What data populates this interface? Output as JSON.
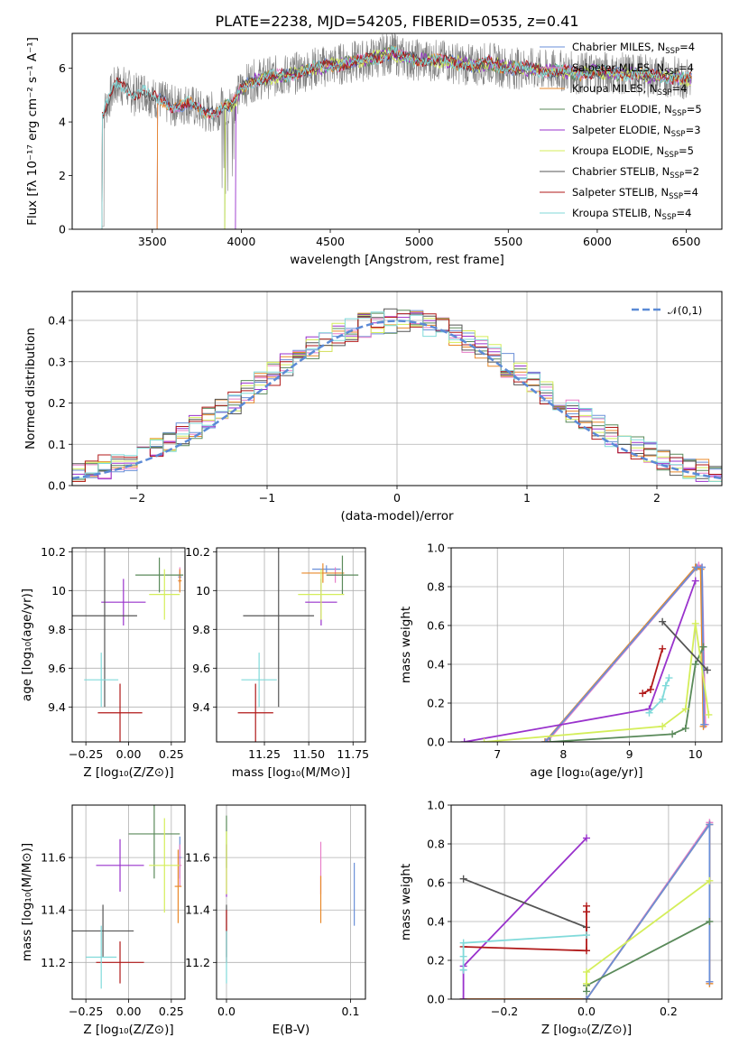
{
  "figure_title": "PLATE=2238, MJD=54205, FIBERID=0535, z=0.41",
  "colors": {
    "Chabrier MILES": "#6a8fd8",
    "Salpeter MILES": "#e87fc8",
    "Kroupa MILES": "#e8892a",
    "Chabrier ELODIE": "#5a8a5a",
    "Salpeter ELODIE": "#9932cc",
    "Kroupa ELODIE": "#d4ee5a",
    "Chabrier STELIB": "#555555",
    "Salpeter STELIB": "#b01818",
    "Kroupa STELIB": "#80dada",
    "data": "#7f7f7f",
    "gaussian": "#5b8ad6"
  },
  "chart_data": [
    {
      "id": "spectrum",
      "type": "line",
      "title": "PLATE=2238, MJD=54205, FIBERID=0535, z=0.41",
      "xlabel": "wavelength [Angstrom, rest frame]",
      "ylabel": "Flux [fλ 10⁻¹⁷ erg cm⁻² s⁻¹ A⁻¹]",
      "xlim": [
        3050,
        6700
      ],
      "ylim": [
        0,
        7.3
      ],
      "xticks": [
        3500,
        4000,
        4500,
        5000,
        5500,
        6000,
        6500
      ],
      "yticks": [
        0,
        2,
        4,
        6
      ],
      "grid": false,
      "legend": "top-right",
      "legend_entries": [
        {
          "name": "Chabrier MILES",
          "nssp": "4"
        },
        {
          "name": "Salpeter MILES",
          "nssp": "4"
        },
        {
          "name": "Kroupa MILES",
          "nssp": "4"
        },
        {
          "name": "Chabrier ELODIE",
          "nssp": "5"
        },
        {
          "name": "Salpeter ELODIE",
          "nssp": "3"
        },
        {
          "name": "Kroupa ELODIE",
          "nssp": "5"
        },
        {
          "name": "Chabrier STELIB",
          "nssp": "2"
        },
        {
          "name": "Salpeter STELIB",
          "nssp": "4"
        },
        {
          "name": "Kroupa STELIB",
          "nssp": "4"
        }
      ],
      "continuum_x": [
        3200,
        3230,
        3280,
        3300,
        3350,
        3400,
        3450,
        3500,
        3550,
        3600,
        3650,
        3700,
        3750,
        3800,
        3850,
        3900,
        3950,
        4000,
        4050,
        4100,
        4200,
        4300,
        4400,
        4500,
        4600,
        4700,
        4800,
        4850,
        4900,
        5000,
        5100,
        5200,
        5300,
        5400,
        5500,
        5600,
        5700,
        5800,
        5900,
        6000,
        6100,
        6200,
        6300,
        6400,
        6500
      ],
      "continuum_y": [
        4.0,
        4.4,
        5.2,
        5.4,
        5.3,
        5.0,
        5.2,
        4.9,
        4.8,
        4.6,
        4.6,
        4.7,
        4.5,
        4.3,
        4.4,
        4.6,
        4.6,
        5.2,
        5.5,
        5.6,
        5.7,
        5.8,
        6.0,
        6.1,
        6.2,
        6.3,
        6.5,
        6.6,
        6.4,
        6.3,
        6.3,
        6.2,
        6.1,
        6.2,
        6.0,
        6.0,
        5.9,
        5.9,
        5.8,
        5.9,
        5.8,
        5.8,
        5.7,
        5.7,
        5.6
      ],
      "model_start_x": {
        "Chabrier MILES": 3530,
        "Salpeter MILES": 3530,
        "Kroupa MILES": 3530,
        "Chabrier ELODIE": 3910,
        "Salpeter ELODIE": 3970,
        "Kroupa ELODIE": 3910,
        "Chabrier STELIB": 3220,
        "Salpeter STELIB": 3220,
        "Kroupa STELIB": 3220
      },
      "data_x_range": [
        3220,
        6530
      ]
    },
    {
      "id": "residuals",
      "type": "step",
      "xlabel": "(data-model)/error",
      "ylabel": "Normed distribution",
      "xlim": [
        -2.5,
        2.5
      ],
      "ylim": [
        0,
        0.47
      ],
      "xticks": [
        -2,
        -1,
        0,
        1,
        2
      ],
      "yticks": [
        0.0,
        0.1,
        0.2,
        0.3,
        0.4
      ],
      "grid": true,
      "legend": "top-right",
      "gaussian_label": "𝒩(0,1)",
      "bin_width": 0.1,
      "series": [
        {
          "name": "Chabrier MILES",
          "offset": 0.0
        },
        {
          "name": "Salpeter MILES",
          "offset": 0.3
        },
        {
          "name": "Kroupa MILES",
          "offset": 0.6
        },
        {
          "name": "Chabrier ELODIE",
          "offset": 0.9
        },
        {
          "name": "Salpeter ELODIE",
          "offset": 1.2
        },
        {
          "name": "Kroupa ELODIE",
          "offset": 1.5
        },
        {
          "name": "Chabrier STELIB",
          "offset": 1.8
        },
        {
          "name": "Salpeter STELIB",
          "offset": 2.1
        },
        {
          "name": "Kroupa STELIB",
          "offset": 2.4
        }
      ]
    },
    {
      "id": "age_vs_Z",
      "type": "errorbar",
      "xlabel": "Z [log₁₀(Z/Z⊙)]",
      "ylabel": "age  [log₁₀(age/yr)]",
      "xlim": [
        -0.33,
        0.33
      ],
      "ylim": [
        9.22,
        10.22
      ],
      "xticks": [
        -0.25,
        0.0,
        0.25
      ],
      "xtick_labels": [
        "−0.25",
        "0.00",
        "0.25"
      ],
      "yticks": [
        9.4,
        9.6,
        9.8,
        10.0,
        10.2
      ],
      "grid": true,
      "points": [
        {
          "name": "Chabrier MILES",
          "x": 0.3,
          "y": 10.07,
          "xerr": 0.01,
          "yerr": 0.03
        },
        {
          "name": "Salpeter MILES",
          "x": 0.3,
          "y": 10.08,
          "xerr": 0.01,
          "yerr": 0.04
        },
        {
          "name": "Kroupa MILES",
          "x": 0.3,
          "y": 10.05,
          "xerr": 0.01,
          "yerr": 0.06
        },
        {
          "name": "Chabrier ELODIE",
          "x": 0.18,
          "y": 10.08,
          "xerr": 0.14,
          "yerr": 0.09
        },
        {
          "name": "Salpeter ELODIE",
          "x": -0.03,
          "y": 9.94,
          "xerr": 0.13,
          "yerr": 0.12
        },
        {
          "name": "Kroupa ELODIE",
          "x": 0.21,
          "y": 9.98,
          "xerr": 0.09,
          "yerr": 0.13
        },
        {
          "name": "Chabrier STELIB",
          "x": -0.14,
          "y": 9.87,
          "xerr": 0.19,
          "yerr": 0.47
        },
        {
          "name": "Salpeter STELIB",
          "x": -0.05,
          "y": 9.37,
          "xerr": 0.13,
          "yerr": 0.15
        },
        {
          "name": "Kroupa STELIB",
          "x": -0.16,
          "y": 9.54,
          "xerr": 0.1,
          "yerr": 0.14
        }
      ]
    },
    {
      "id": "age_vs_mass",
      "type": "errorbar",
      "xlabel": "mass [log₁₀(M/M⊙)]",
      "xlim": [
        10.98,
        11.82
      ],
      "ylim": [
        9.22,
        10.22
      ],
      "xticks": [
        11.25,
        11.5,
        11.75
      ],
      "xtick_labels": [
        "11.25",
        "11.50",
        "11.75"
      ],
      "yticks": [
        9.4,
        9.6,
        9.8,
        10.0,
        10.2
      ],
      "grid": true,
      "points": [
        {
          "name": "Chabrier MILES",
          "x": 11.6,
          "y": 10.11,
          "xerr": 0.08,
          "yerr": 0.02
        },
        {
          "name": "Salpeter MILES",
          "x": 11.65,
          "y": 10.08,
          "xerr": 0.05,
          "yerr": 0.04
        },
        {
          "name": "Kroupa MILES",
          "x": 11.58,
          "y": 10.09,
          "xerr": 0.12,
          "yerr": 0.05
        },
        {
          "name": "Chabrier ELODIE",
          "x": 11.69,
          "y": 10.08,
          "xerr": 0.09,
          "yerr": 0.1
        },
        {
          "name": "Salpeter ELODIE",
          "x": 11.57,
          "y": 9.94,
          "xerr": 0.09,
          "yerr": 0.12
        },
        {
          "name": "Kroupa ELODIE",
          "x": 11.57,
          "y": 9.98,
          "xerr": 0.13,
          "yerr": 0.13
        },
        {
          "name": "Chabrier STELIB",
          "x": 11.33,
          "y": 9.87,
          "xerr": 0.2,
          "yerr": 0.47
        },
        {
          "name": "Salpeter STELIB",
          "x": 11.2,
          "y": 9.37,
          "xerr": 0.1,
          "yerr": 0.15
        },
        {
          "name": "Kroupa STELIB",
          "x": 11.22,
          "y": 9.54,
          "xerr": 0.1,
          "yerr": 0.14
        }
      ]
    },
    {
      "id": "weight_vs_age",
      "type": "line",
      "xlabel": "age  [log₁₀(age/yr)]",
      "ylabel": "mass weight",
      "xlim": [
        6.3,
        10.4
      ],
      "ylim": [
        0,
        1
      ],
      "xticks": [
        7,
        8,
        9,
        10
      ],
      "yticks": [
        0.0,
        0.2,
        0.4,
        0.6,
        0.8,
        1.0
      ],
      "grid": true,
      "series": [
        {
          "name": "Salpeter MILES",
          "x": [
            7.75,
            10.05,
            10.1,
            10.15
          ],
          "y": [
            0.0,
            0.91,
            0.9,
            0.09
          ]
        },
        {
          "name": "Kroupa MILES",
          "x": [
            7.72,
            10.0,
            10.08,
            10.12
          ],
          "y": [
            0.0,
            0.9,
            0.89,
            0.08
          ]
        },
        {
          "name": "Chabrier MILES",
          "x": [
            7.73,
            10.02,
            10.1,
            10.13
          ],
          "y": [
            0.0,
            0.9,
            0.9,
            0.09
          ]
        },
        {
          "name": "Chabrier ELODIE",
          "x": [
            7.8,
            9.65,
            9.85,
            10.0,
            10.12
          ],
          "y": [
            0.0,
            0.04,
            0.07,
            0.4,
            0.49
          ]
        },
        {
          "name": "Salpeter ELODIE",
          "x": [
            6.5,
            9.3,
            10.0
          ],
          "y": [
            0.0,
            0.17,
            0.83
          ]
        },
        {
          "name": "Kroupa ELODIE",
          "x": [
            6.8,
            9.5,
            9.85,
            10.0,
            10.2
          ],
          "y": [
            0.0,
            0.08,
            0.17,
            0.61,
            0.14
          ]
        },
        {
          "name": "Chabrier STELIB",
          "x": [
            9.5,
            10.18
          ],
          "y": [
            0.62,
            0.37
          ]
        },
        {
          "name": "Salpeter STELIB",
          "x": [
            9.2,
            9.32,
            9.5
          ],
          "y": [
            0.25,
            0.27,
            0.48
          ]
        },
        {
          "name": "Kroupa STELIB",
          "x": [
            9.3,
            9.5,
            9.55,
            9.6
          ],
          "y": [
            0.15,
            0.22,
            0.29,
            0.33
          ]
        }
      ]
    },
    {
      "id": "mass_vs_Z",
      "type": "errorbar",
      "xlabel": "Z [log₁₀(Z/Z⊙)]",
      "ylabel": "mass [log₁₀(M/M⊙)]",
      "xlim": [
        -0.33,
        0.33
      ],
      "ylim": [
        11.06,
        11.8
      ],
      "xticks": [
        -0.25,
        0.0,
        0.25
      ],
      "xtick_labels": [
        "−0.25",
        "0.00",
        "0.25"
      ],
      "yticks": [
        11.2,
        11.4,
        11.6
      ],
      "grid": true,
      "points": [
        {
          "name": "Chabrier MILES",
          "x": 0.3,
          "y": 11.6,
          "xerr": 0.01,
          "yerr": 0.08
        },
        {
          "name": "Salpeter MILES",
          "x": 0.3,
          "y": 11.57,
          "xerr": 0.01,
          "yerr": 0.08
        },
        {
          "name": "Kroupa MILES",
          "x": 0.29,
          "y": 11.49,
          "xerr": 0.02,
          "yerr": 0.14
        },
        {
          "name": "Chabrier ELODIE",
          "x": 0.15,
          "y": 11.69,
          "xerr": 0.15,
          "yerr": 0.17
        },
        {
          "name": "Salpeter ELODIE",
          "x": -0.05,
          "y": 11.57,
          "xerr": 0.14,
          "yerr": 0.1
        },
        {
          "name": "Kroupa ELODIE",
          "x": 0.21,
          "y": 11.57,
          "xerr": 0.09,
          "yerr": 0.18
        },
        {
          "name": "Chabrier STELIB",
          "x": -0.15,
          "y": 11.32,
          "xerr": 0.18,
          "yerr": 0.1
        },
        {
          "name": "Salpeter STELIB",
          "x": -0.05,
          "y": 11.2,
          "xerr": 0.14,
          "yerr": 0.08
        },
        {
          "name": "Kroupa STELIB",
          "x": -0.16,
          "y": 11.22,
          "xerr": 0.09,
          "yerr": 0.12
        }
      ]
    },
    {
      "id": "mass_vs_EBV",
      "type": "errorbar",
      "xlabel": "E(B-V)",
      "xlim": [
        -0.008,
        0.112
      ],
      "ylim": [
        11.06,
        11.8
      ],
      "xticks": [
        0.0,
        0.1
      ],
      "xtick_labels": [
        "0.0",
        "0.1"
      ],
      "yticks": [
        11.2,
        11.4,
        11.6
      ],
      "grid": true,
      "points": [
        {
          "name": "Chabrier MILES",
          "x": 0.103,
          "y": 11.46,
          "xerr": 0.0,
          "yerr": 0.12
        },
        {
          "name": "Salpeter MILES",
          "x": 0.076,
          "y": 11.56,
          "xerr": 0.0,
          "yerr": 0.1
        },
        {
          "name": "Kroupa MILES",
          "x": 0.076,
          "y": 11.44,
          "xerr": 0.0,
          "yerr": 0.09
        },
        {
          "name": "Chabrier ELODIE",
          "x": 0.0,
          "y": 11.66,
          "xerr": 0.0,
          "yerr": 0.1
        },
        {
          "name": "Salpeter ELODIE",
          "x": 0.0,
          "y": 11.55,
          "xerr": 0.0,
          "yerr": 0.1
        },
        {
          "name": "Kroupa ELODIE",
          "x": 0.0,
          "y": 11.58,
          "xerr": 0.0,
          "yerr": 0.12
        },
        {
          "name": "Chabrier STELIB",
          "x": 0.0,
          "y": 11.32,
          "xerr": 0.0,
          "yerr": 0.1
        },
        {
          "name": "Salpeter STELIB",
          "x": 0.0,
          "y": 11.3,
          "xerr": 0.0,
          "yerr": 0.1
        },
        {
          "name": "Kroupa STELIB",
          "x": 0.0,
          "y": 11.22,
          "xerr": 0.0,
          "yerr": 0.1
        }
      ]
    },
    {
      "id": "weight_vs_Z",
      "type": "line",
      "xlabel": "Z [log₁₀(Z/Z⊙)]",
      "ylabel": "mass weight",
      "xlim": [
        -0.33,
        0.33
      ],
      "ylim": [
        0,
        1
      ],
      "xticks": [
        -0.2,
        0.0,
        0.2
      ],
      "xtick_labels": [
        "−0.2",
        "0.0",
        "0.2"
      ],
      "yticks": [
        0.0,
        0.2,
        0.4,
        0.6,
        0.8,
        1.0
      ],
      "grid": true,
      "series": [
        {
          "name": "Salpeter MILES",
          "x": [
            -0.3,
            0.0,
            0.3,
            0.3
          ],
          "y": [
            0.0,
            0.0,
            0.91,
            0.09
          ]
        },
        {
          "name": "Kroupa MILES",
          "x": [
            -0.3,
            0.0,
            0.3,
            0.3
          ],
          "y": [
            0.0,
            0.0,
            0.9,
            0.08
          ]
        },
        {
          "name": "Chabrier MILES",
          "x": [
            0.0,
            0.3,
            0.3
          ],
          "y": [
            0.0,
            0.9,
            0.09
          ]
        },
        {
          "name": "Chabrier ELODIE",
          "x": [
            0.0,
            0.0,
            0.3
          ],
          "y": [
            0.04,
            0.07,
            0.4
          ]
        },
        {
          "name": "Salpeter ELODIE",
          "x": [
            -0.3,
            -0.3,
            0.0
          ],
          "y": [
            0.0,
            0.17,
            0.83
          ]
        },
        {
          "name": "Kroupa ELODIE",
          "x": [
            0.0,
            0.0,
            0.3
          ],
          "y": [
            0.08,
            0.14,
            0.61
          ]
        },
        {
          "name": "Chabrier STELIB",
          "x": [
            -0.3,
            0.0
          ],
          "y": [
            0.62,
            0.37
          ]
        },
        {
          "name": "Salpeter STELIB",
          "x": [
            -0.3,
            0.0,
            0.0,
            0.0
          ],
          "y": [
            0.27,
            0.25,
            0.45,
            0.48
          ]
        },
        {
          "name": "Kroupa STELIB",
          "x": [
            -0.3,
            -0.3,
            -0.3,
            0.0
          ],
          "y": [
            0.15,
            0.22,
            0.29,
            0.33
          ]
        }
      ]
    }
  ]
}
